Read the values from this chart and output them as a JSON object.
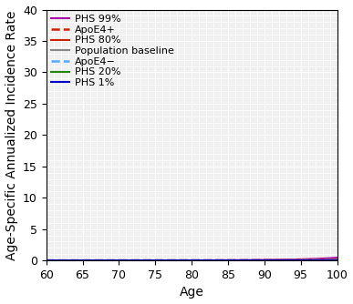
{
  "title": "",
  "xlabel": "Age",
  "ylabel": "Age-Specific Annualized Incidence Rate",
  "xlim": [
    60,
    100
  ],
  "ylim": [
    0,
    40
  ],
  "xticks": [
    60,
    65,
    70,
    75,
    80,
    85,
    90,
    95,
    100
  ],
  "yticks": [
    0,
    5,
    10,
    15,
    20,
    25,
    30,
    35,
    40
  ],
  "background_color": "#f0f0f0",
  "grid_color": "#ffffff",
  "curves": [
    {
      "label": "PHS 99%",
      "color": "#aa00aa",
      "linestyle": "solid",
      "linewidth": 1.5,
      "base_rate": 0.0004,
      "exp_rate": 0.175
    },
    {
      "label": "ApoE4+",
      "color": "#cc2200",
      "linestyle": "dashed",
      "linewidth": 1.8,
      "base_rate": 0.0004,
      "exp_rate": 0.148
    },
    {
      "label": "PHS 80%",
      "color": "#cc2200",
      "linestyle": "solid",
      "linewidth": 1.5,
      "base_rate": 0.0004,
      "exp_rate": 0.143
    },
    {
      "label": "Population baseline",
      "color": "#888888",
      "linestyle": "solid",
      "linewidth": 1.5,
      "base_rate": 0.0004,
      "exp_rate": 0.128
    },
    {
      "label": "ApoE4−",
      "color": "#55aaff",
      "linestyle": "dashed",
      "linewidth": 1.8,
      "base_rate": 0.0004,
      "exp_rate": 0.118
    },
    {
      "label": "PHS 20%",
      "color": "#228800",
      "linestyle": "solid",
      "linewidth": 1.5,
      "base_rate": 0.0004,
      "exp_rate": 0.108
    },
    {
      "label": "PHS 1%",
      "color": "#0000cc",
      "linestyle": "solid",
      "linewidth": 1.5,
      "base_rate": 0.0004,
      "exp_rate": 0.085
    }
  ],
  "legend_fontsize": 8,
  "legend_loc": "upper left",
  "axis_fontsize": 10,
  "tick_fontsize": 9
}
